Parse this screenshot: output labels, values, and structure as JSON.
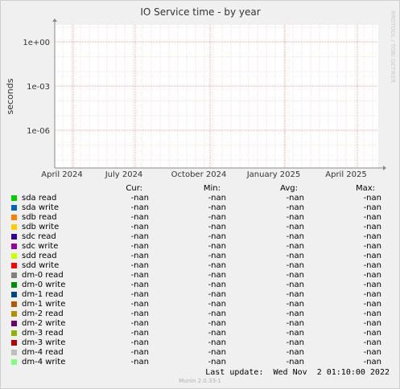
{
  "chart_data": {
    "type": "line",
    "title": "IO Service time - by year",
    "ylabel": "seconds",
    "yscale": "log",
    "y_ticks": [
      "1e+00",
      "1e-03",
      "1e-06"
    ],
    "x_ticks": [
      "April 2024",
      "July 2024",
      "October 2024",
      "January 2025",
      "April 2025"
    ],
    "watermark": "RRDTOOL / TOBI OETIKER",
    "grid": true,
    "series": [
      {
        "name": "sda read",
        "color": "#00cc00",
        "cur": "-nan",
        "min": "-nan",
        "avg": "-nan",
        "max": "-nan"
      },
      {
        "name": "sda write",
        "color": "#0066b3",
        "cur": "-nan",
        "min": "-nan",
        "avg": "-nan",
        "max": "-nan"
      },
      {
        "name": "sdb read",
        "color": "#ff8000",
        "cur": "-nan",
        "min": "-nan",
        "avg": "-nan",
        "max": "-nan"
      },
      {
        "name": "sdb write",
        "color": "#ffcc00",
        "cur": "-nan",
        "min": "-nan",
        "avg": "-nan",
        "max": "-nan"
      },
      {
        "name": "sdc read",
        "color": "#330099",
        "cur": "-nan",
        "min": "-nan",
        "avg": "-nan",
        "max": "-nan"
      },
      {
        "name": "sdc write",
        "color": "#990099",
        "cur": "-nan",
        "min": "-nan",
        "avg": "-nan",
        "max": "-nan"
      },
      {
        "name": "sdd read",
        "color": "#ccff00",
        "cur": "-nan",
        "min": "-nan",
        "avg": "-nan",
        "max": "-nan"
      },
      {
        "name": "sdd write",
        "color": "#ff0000",
        "cur": "-nan",
        "min": "-nan",
        "avg": "-nan",
        "max": "-nan"
      },
      {
        "name": "dm-0 read",
        "color": "#808080",
        "cur": "-nan",
        "min": "-nan",
        "avg": "-nan",
        "max": "-nan"
      },
      {
        "name": "dm-0 write",
        "color": "#008f00",
        "cur": "-nan",
        "min": "-nan",
        "avg": "-nan",
        "max": "-nan"
      },
      {
        "name": "dm-1 read",
        "color": "#00487d",
        "cur": "-nan",
        "min": "-nan",
        "avg": "-nan",
        "max": "-nan"
      },
      {
        "name": "dm-1 write",
        "color": "#b35a00",
        "cur": "-nan",
        "min": "-nan",
        "avg": "-nan",
        "max": "-nan"
      },
      {
        "name": "dm-2 read",
        "color": "#b38f00",
        "cur": "-nan",
        "min": "-nan",
        "avg": "-nan",
        "max": "-nan"
      },
      {
        "name": "dm-2 write",
        "color": "#6b006b",
        "cur": "-nan",
        "min": "-nan",
        "avg": "-nan",
        "max": "-nan"
      },
      {
        "name": "dm-3 read",
        "color": "#8fb300",
        "cur": "-nan",
        "min": "-nan",
        "avg": "-nan",
        "max": "-nan"
      },
      {
        "name": "dm-3 write",
        "color": "#b30000",
        "cur": "-nan",
        "min": "-nan",
        "avg": "-nan",
        "max": "-nan"
      },
      {
        "name": "dm-4 read",
        "color": "#bebebe",
        "cur": "-nan",
        "min": "-nan",
        "avg": "-nan",
        "max": "-nan"
      },
      {
        "name": "dm-4 write",
        "color": "#80ff80",
        "cur": "-nan",
        "min": "-nan",
        "avg": "-nan",
        "max": "-nan"
      }
    ]
  },
  "legend": {
    "headers": {
      "cur": "Cur:",
      "min": "Min:",
      "avg": "Avg:",
      "max": "Max:"
    }
  },
  "last_update": "Last update:  Wed Nov  2 01:10:00 2022",
  "footer": "Munin 2.0.33-1"
}
